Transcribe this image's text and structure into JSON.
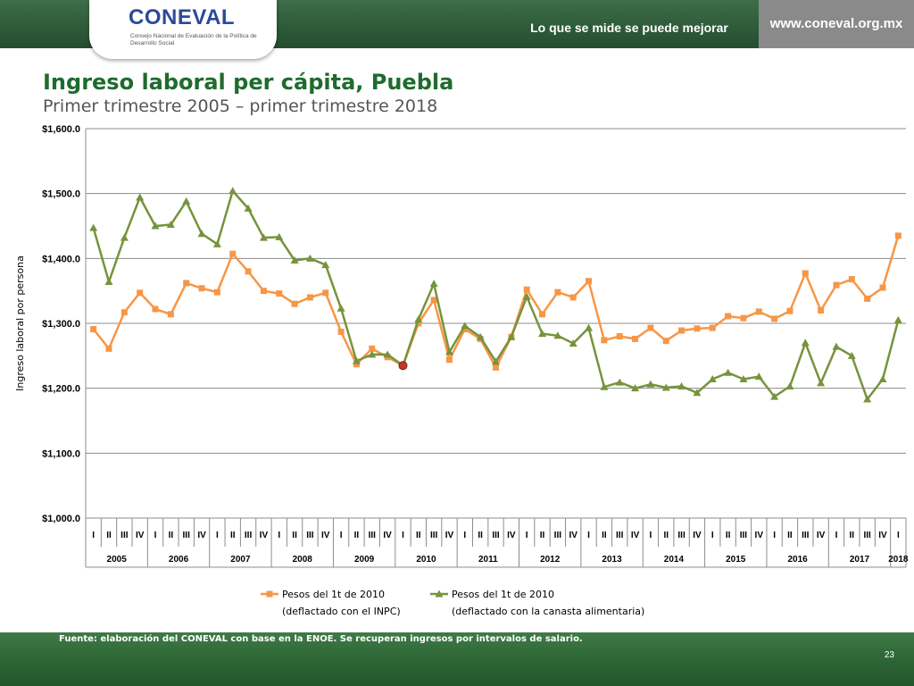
{
  "header": {
    "logo_word": "CONEVAL",
    "logo_subtitle": "Consejo Nacional de Evaluación de la Política de Desarrollo Social",
    "slogan": "Lo que se mide se puede mejorar",
    "url": "www.coneval.org.mx"
  },
  "footer": {
    "source": "Fuente: elaboración del CONEVAL con base en la ENOE. Se recuperan ingresos por intervalos de salario.",
    "page_number": "23"
  },
  "colors": {
    "inpc": "#f79646",
    "canasta": "#77933c",
    "highlight": "#c0392b",
    "title": "#1f6b2e"
  },
  "chart_data": {
    "type": "line",
    "title": "Ingreso laboral per cápita, Puebla",
    "subtitle": "Primer trimestre 2005 – primer trimestre 2018",
    "ylabel": "Ingreso laboral por persona",
    "xlabel": "",
    "ylim": [
      1000,
      1600
    ],
    "yticks": [
      1000,
      1100,
      1200,
      1300,
      1400,
      1500,
      1600
    ],
    "ytick_labels": [
      "$1,000.0",
      "$1,100.0",
      "$1,200.0",
      "$1,300.0",
      "$1,400.0",
      "$1,500.0",
      "$1,600.0"
    ],
    "grid": true,
    "legend_position": "bottom",
    "quarters": [
      "I",
      "II",
      "III",
      "IV",
      "I",
      "II",
      "III",
      "IV",
      "I",
      "II",
      "III",
      "IV",
      "I",
      "II",
      "III",
      "IV",
      "I",
      "II",
      "III",
      "IV",
      "I",
      "II",
      "III",
      "IV",
      "I",
      "II",
      "III",
      "IV",
      "I",
      "II",
      "III",
      "IV",
      "I",
      "II",
      "III",
      "IV",
      "I",
      "II",
      "III",
      "IV",
      "I",
      "II",
      "III",
      "IV",
      "I",
      "II",
      "III",
      "IV",
      "I",
      "II",
      "III",
      "IV",
      "I"
    ],
    "years": [
      "2005",
      "2006",
      "2007",
      "2008",
      "2009",
      "2010",
      "2011",
      "2012",
      "2013",
      "2014",
      "2015",
      "2016",
      "2017",
      "2018"
    ],
    "highlight_point": {
      "index": 20,
      "value": 1235
    },
    "series": [
      {
        "name": "Pesos del 1t de 2010",
        "name_line2": "(deflactado con el INPC)",
        "marker": "square",
        "values": [
          1291,
          1261,
          1317,
          1347,
          1322,
          1314,
          1362,
          1354,
          1348,
          1407,
          1380,
          1350,
          1346,
          1330,
          1340,
          1347,
          1287,
          1237,
          1261,
          1248,
          1235,
          1300,
          1336,
          1244,
          1291,
          1276,
          1232,
          1279,
          1352,
          1314,
          1348,
          1340,
          1365,
          1274,
          1280,
          1276,
          1293,
          1273,
          1289,
          1292,
          1293,
          1311,
          1308,
          1318,
          1307,
          1319,
          1377,
          1320,
          1359,
          1368,
          1338,
          1355,
          1435
        ]
      },
      {
        "name": "Pesos del 1t de 2010",
        "name_line2": "(deflactado con la canasta alimentaria)",
        "marker": "triangle",
        "values": [
          1447,
          1364,
          1432,
          1494,
          1450,
          1452,
          1488,
          1438,
          1422,
          1504,
          1477,
          1432,
          1433,
          1397,
          1400,
          1390,
          1323,
          1242,
          1252,
          1252,
          1235,
          1306,
          1361,
          1256,
          1296,
          1279,
          1241,
          1279,
          1341,
          1284,
          1281,
          1269,
          1293,
          1202,
          1209,
          1200,
          1206,
          1201,
          1203,
          1193,
          1214,
          1224,
          1214,
          1218,
          1187,
          1203,
          1270,
          1208,
          1264,
          1250,
          1183,
          1214,
          1305
        ]
      }
    ]
  }
}
